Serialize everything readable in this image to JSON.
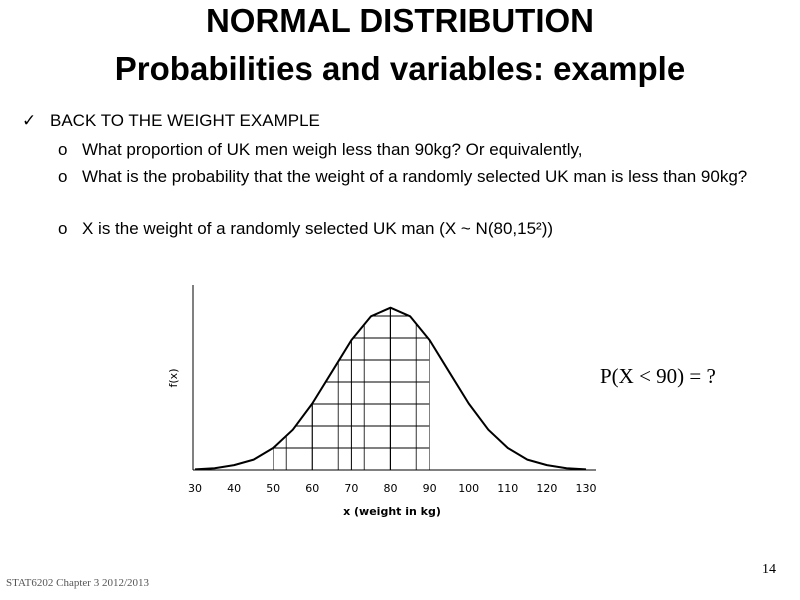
{
  "header": {
    "title": "NORMAL DISTRIBUTION",
    "subtitle": "Probabilities and variables: example"
  },
  "bullets": [
    "BACK TO THE WEIGHT EXAMPLE",
    "What proportion of UK men weigh less than 90kg? Or equivalently,",
    "What is the probability that the weight of a randomly selected UK man is less than 90kg?",
    "X is the weight of a randomly selected UK man (X ~ N(80,15²))"
  ],
  "formula": "P(X < 90) = ?",
  "footer": "STAT6202 Chapter 3 2012/2013",
  "page_number": "14",
  "chart_data": {
    "type": "line",
    "x_label": "x (weight in kg)",
    "y_label": "f(x)",
    "x": [
      30,
      35,
      40,
      45,
      50,
      55,
      60,
      65,
      70,
      75,
      80,
      85,
      90,
      95,
      100,
      105,
      110,
      115,
      120,
      125,
      130
    ],
    "values": [
      0.0001,
      0.0003,
      0.0008,
      0.0017,
      0.0036,
      0.0066,
      0.0109,
      0.0161,
      0.0213,
      0.0252,
      0.0266,
      0.0252,
      0.0213,
      0.0161,
      0.0109,
      0.0066,
      0.0036,
      0.0017,
      0.0008,
      0.0003,
      0.0001
    ],
    "color": "#000000",
    "xlim": [
      30,
      130
    ],
    "xticks": [
      30,
      40,
      50,
      60,
      70,
      80,
      90,
      100,
      110,
      120,
      130
    ],
    "ylim": [
      0,
      0.03
    ],
    "shade_xlim": [
      50,
      90
    ]
  }
}
